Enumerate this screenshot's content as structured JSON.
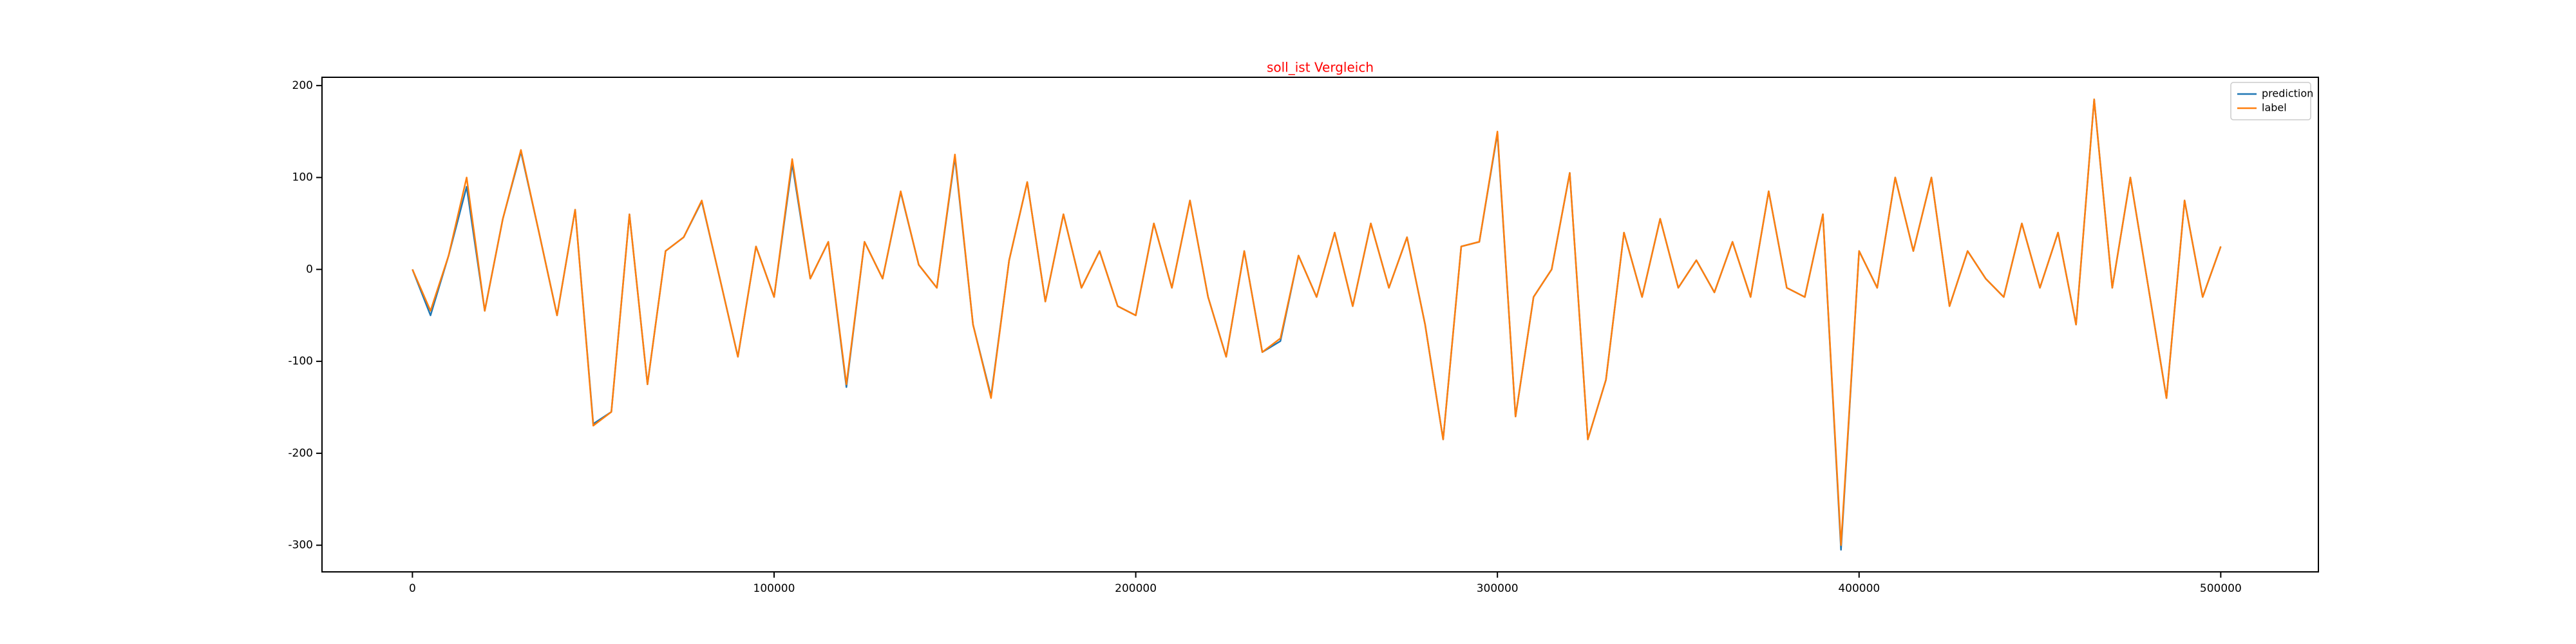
{
  "chart_data": {
    "type": "line",
    "title": "soll_ist Vergleich",
    "x": [
      0,
      5000,
      10000,
      15000,
      20000,
      25000,
      30000,
      35000,
      40000,
      45000,
      50000,
      55000,
      60000,
      65000,
      70000,
      75000,
      80000,
      85000,
      90000,
      95000,
      100000,
      105000,
      110000,
      115000,
      120000,
      125000,
      130000,
      135000,
      140000,
      145000,
      150000,
      155000,
      160000,
      165000,
      170000,
      175000,
      180000,
      185000,
      190000,
      195000,
      200000,
      205000,
      210000,
      215000,
      220000,
      225000,
      230000,
      235000,
      240000,
      245000,
      250000,
      255000,
      260000,
      265000,
      270000,
      275000,
      280000,
      285000,
      290000,
      295000,
      300000,
      305000,
      310000,
      315000,
      320000,
      325000,
      330000,
      335000,
      340000,
      345000,
      350000,
      355000,
      360000,
      365000,
      370000,
      375000,
      380000,
      385000,
      390000,
      395000,
      400000,
      405000,
      410000,
      415000,
      420000,
      425000,
      430000,
      435000,
      440000,
      445000,
      450000,
      455000,
      460000,
      465000,
      470000,
      475000,
      480000,
      485000,
      490000,
      495000,
      500000
    ],
    "series": [
      {
        "name": "prediction",
        "color": "#1f77b4",
        "values": [
          0,
          -50,
          15,
          90,
          -45,
          55,
          128,
          40,
          -50,
          65,
          -168,
          -155,
          60,
          -125,
          20,
          35,
          74,
          -10,
          -95,
          25,
          -30,
          115,
          -10,
          30,
          -128,
          30,
          -10,
          84,
          5,
          -20,
          122,
          -60,
          -138,
          10,
          95,
          -35,
          60,
          -20,
          20,
          -40,
          -50,
          50,
          -20,
          75,
          -30,
          -95,
          20,
          -90,
          -78,
          15,
          -30,
          40,
          -40,
          50,
          -20,
          35,
          -60,
          -185,
          25,
          30,
          148,
          -160,
          -30,
          0,
          105,
          -185,
          -120,
          40,
          -30,
          55,
          -20,
          10,
          -25,
          30,
          -30,
          85,
          -20,
          -30,
          60,
          -305,
          20,
          -20,
          100,
          20,
          100,
          -40,
          20,
          -10,
          -30,
          50,
          -20,
          40,
          -60,
          185,
          -20,
          100,
          -20,
          -140,
          75,
          -30,
          25
        ]
      },
      {
        "name": "label",
        "color": "#ff7f0e",
        "values": [
          0,
          -45,
          15,
          100,
          -45,
          55,
          130,
          40,
          -50,
          65,
          -170,
          -155,
          60,
          -125,
          20,
          35,
          75,
          -10,
          -95,
          25,
          -30,
          120,
          -10,
          30,
          -125,
          30,
          -10,
          85,
          5,
          -20,
          125,
          -60,
          -140,
          10,
          95,
          -35,
          60,
          -20,
          20,
          -40,
          -50,
          50,
          -20,
          75,
          -30,
          -95,
          20,
          -90,
          -75,
          15,
          -30,
          40,
          -40,
          50,
          -20,
          35,
          -60,
          -185,
          25,
          30,
          150,
          -160,
          -30,
          0,
          105,
          -185,
          -120,
          40,
          -30,
          55,
          -20,
          10,
          -25,
          30,
          -30,
          85,
          -20,
          -30,
          60,
          -300,
          20,
          -20,
          100,
          20,
          100,
          -40,
          20,
          -10,
          -30,
          50,
          -20,
          40,
          -60,
          185,
          -20,
          100,
          -20,
          -140,
          75,
          -30,
          25
        ]
      }
    ],
    "xlim": [
      -25000,
      527000
    ],
    "ylim": [
      -329,
      209
    ],
    "xticks": [
      0,
      100000,
      200000,
      300000,
      400000,
      500000
    ],
    "yticks": [
      -300,
      -200,
      -100,
      0,
      100,
      200
    ],
    "grid": false,
    "legend": "upper right",
    "title_color": "#ff0000"
  }
}
